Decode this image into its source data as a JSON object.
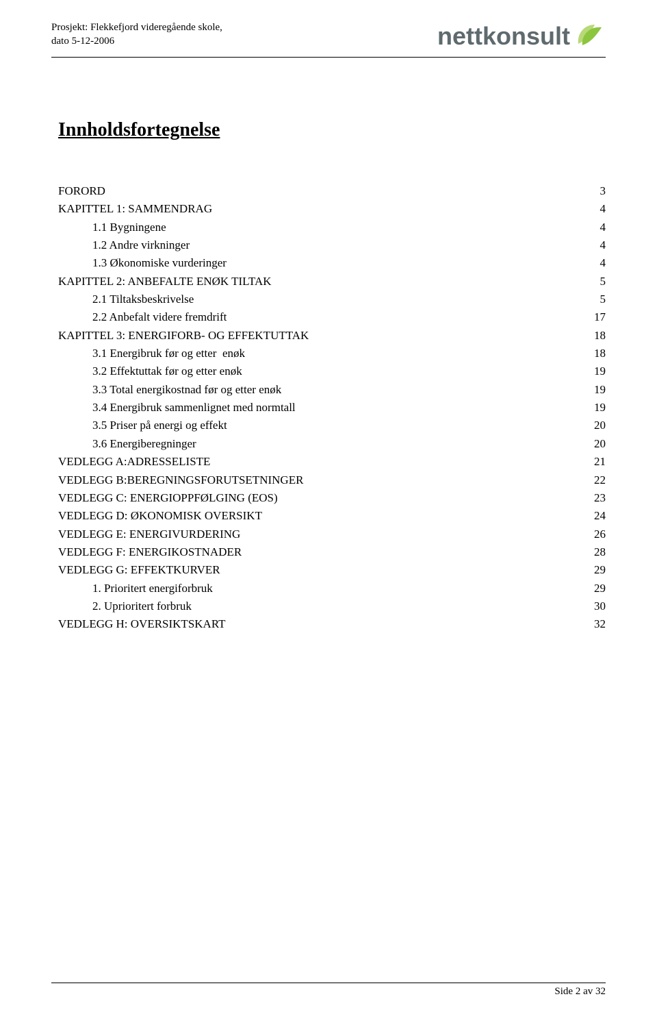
{
  "header": {
    "project_line1": "Prosjekt: Flekkefjord videregående skole,",
    "project_line2": "dato 5-12-2006"
  },
  "logo": {
    "text": "nettkonsult",
    "text_color": "#5e6a6e",
    "leaf_color_primary": "#8cc63f",
    "leaf_color_secondary": "#b8d978"
  },
  "title": "Innholdsfortegnelse",
  "toc": [
    {
      "label": "FORORD",
      "page": "3",
      "indent": 0
    },
    {
      "label": "KAPITTEL 1: SAMMENDRAG",
      "page": "4",
      "indent": 0
    },
    {
      "label": "1.1 Bygningene",
      "page": "4",
      "indent": 1
    },
    {
      "label": "1.2 Andre virkninger",
      "page": "4",
      "indent": 1
    },
    {
      "label": "1.3 Økonomiske vurderinger",
      "page": "4",
      "indent": 1
    },
    {
      "label": "KAPITTEL 2: ANBEFALTE ENØK TILTAK",
      "page": "5",
      "indent": 0
    },
    {
      "label": "2.1 Tiltaksbeskrivelse",
      "page": "5",
      "indent": 1
    },
    {
      "label": "2.2 Anbefalt videre fremdrift",
      "page": "17",
      "indent": 1
    },
    {
      "label": "KAPITTEL 3: ENERGIFORB- OG EFFEKTUTTAK",
      "page": "18",
      "indent": 0
    },
    {
      "label": "3.1 Energibruk før og etter  enøk",
      "page": "18",
      "indent": 1
    },
    {
      "label": "3.2 Effektuttak før og etter enøk",
      "page": "19",
      "indent": 1
    },
    {
      "label": "3.3 Total energikostnad før og etter enøk",
      "page": "19",
      "indent": 1
    },
    {
      "label": "3.4 Energibruk sammenlignet med normtall",
      "page": "19",
      "indent": 1
    },
    {
      "label": "3.5 Priser på energi og effekt",
      "page": "20",
      "indent": 1
    },
    {
      "label": "3.6 Energiberegninger",
      "page": "20",
      "indent": 1
    },
    {
      "label": "VEDLEGG A:ADRESSELISTE",
      "page": "21",
      "indent": 0
    },
    {
      "label": "VEDLEGG B:BEREGNINGSFORUTSETNINGER",
      "page": "22",
      "indent": 0
    },
    {
      "label": "VEDLEGG C: ENERGIOPPFØLGING (EOS)",
      "page": "23",
      "indent": 0
    },
    {
      "label": "VEDLEGG D: ØKONOMISK OVERSIKT",
      "page": "24",
      "indent": 0
    },
    {
      "label": "VEDLEGG E: ENERGIVURDERING",
      "page": "26",
      "indent": 0
    },
    {
      "label": "VEDLEGG F: ENERGIKOSTNADER",
      "page": "28",
      "indent": 0
    },
    {
      "label": "VEDLEGG G: EFFEKTKURVER",
      "page": "29",
      "indent": 0
    },
    {
      "label": "1. Prioritert energiforbruk",
      "page": "29",
      "indent": 1
    },
    {
      "label": "2. Uprioritert forbruk",
      "page": "30",
      "indent": 1
    },
    {
      "label": "VEDLEGG H: OVERSIKTSKART",
      "page": "32",
      "indent": 0
    }
  ],
  "footer": {
    "text": "Side 2 av 32"
  }
}
